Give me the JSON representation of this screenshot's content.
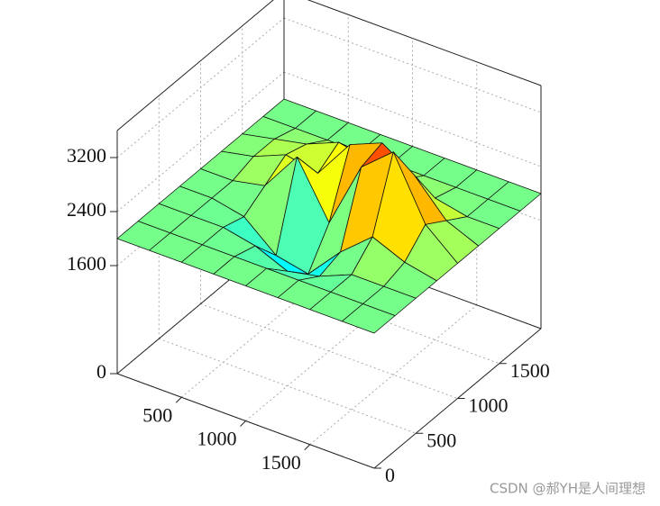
{
  "chart_data": {
    "type": "surface3d",
    "x": [
      0,
      250,
      500,
      750,
      1000,
      1250,
      1500,
      1750,
      2000
    ],
    "y": [
      0,
      250,
      500,
      750,
      1000,
      1250,
      1500,
      1750,
      2000
    ],
    "z": [
      [
        2000,
        2000,
        2000,
        2000,
        2000,
        2000,
        2000,
        2000,
        2000
      ],
      [
        2000,
        2000,
        2000,
        2000,
        2000,
        2000,
        2000,
        2000,
        2000
      ],
      [
        2000,
        2000,
        2000,
        1900,
        1700,
        1800,
        2000,
        2000,
        2000
      ],
      [
        2000,
        2000,
        1900,
        1500,
        1400,
        1900,
        2300,
        2100,
        2000
      ],
      [
        2000,
        2000,
        2100,
        2700,
        1900,
        2900,
        3300,
        2400,
        2000
      ],
      [
        2000,
        2100,
        2300,
        2200,
        2800,
        3000,
        2700,
        2200,
        2000
      ],
      [
        2000,
        2100,
        2200,
        2400,
        2300,
        2200,
        2100,
        2000,
        2000
      ],
      [
        2000,
        2000,
        2000,
        2000,
        2000,
        2000,
        2000,
        2000,
        2000
      ],
      [
        2000,
        2000,
        2000,
        2000,
        2000,
        2000,
        2000,
        2000,
        2000
      ]
    ],
    "xlim": [
      0,
      2000
    ],
    "ylim": [
      0,
      2000
    ],
    "zlim": [
      0,
      3600
    ],
    "xticks": [
      500,
      1000,
      1500
    ],
    "yticks": [
      0,
      500,
      1000,
      1500
    ],
    "zticks": [
      0,
      1600,
      2400,
      3200
    ],
    "grid": true,
    "colormap": "jet",
    "watermark": "CSDN @郝YH是人间理想"
  }
}
